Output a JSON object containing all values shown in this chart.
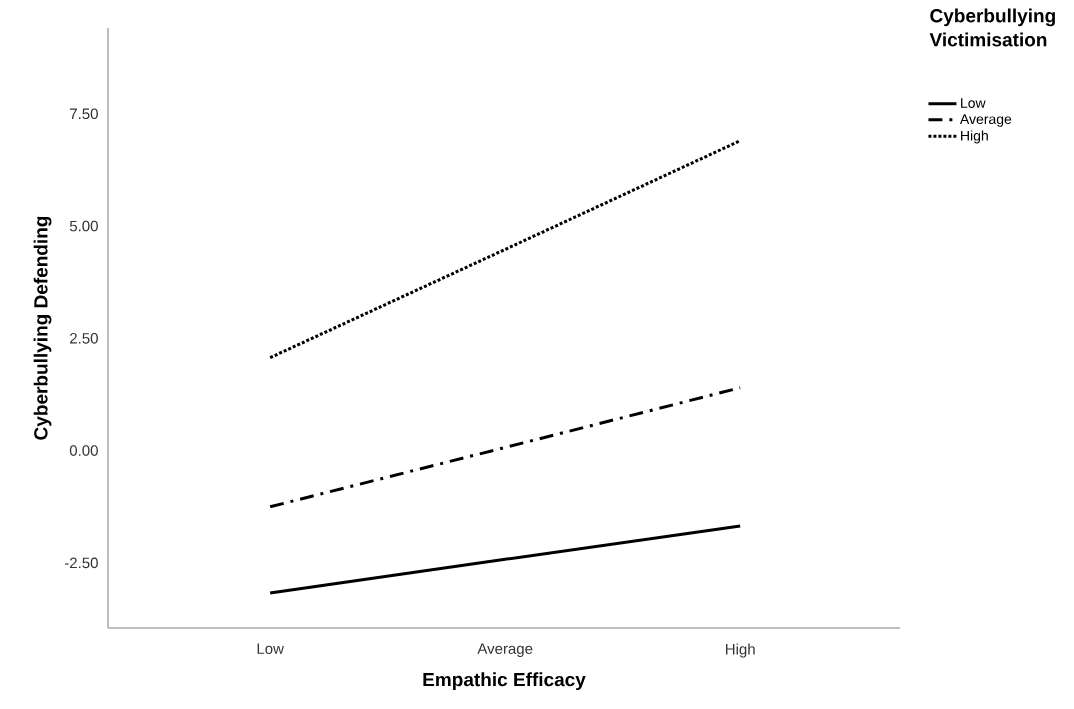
{
  "chart_data": {
    "type": "line",
    "xlabel": "Empathic Efficacy",
    "ylabel": "Cyberbullying Defending",
    "legend_title": "Cyberbullying Victimisation",
    "categories": [
      "Low",
      "Average",
      "High"
    ],
    "series": [
      {
        "name": "Low",
        "color": "#000000",
        "line_style": "solid",
        "values": [
          -3.17,
          -2.42,
          -1.68
        ]
      },
      {
        "name": "Average",
        "color": "#000000",
        "line_style": "dashdot",
        "values": [
          -1.25,
          0.07,
          1.4
        ]
      },
      {
        "name": "High",
        "color": "#000000",
        "line_style": "dotted",
        "values": [
          2.07,
          4.48,
          6.9
        ]
      }
    ],
    "ylim": [
      -3.95,
      9.41
    ],
    "yticks": [
      {
        "value": -2.5,
        "label": "-2.50"
      },
      {
        "value": 0,
        "label": "0.00"
      },
      {
        "value": 2.5,
        "label": "2.50"
      },
      {
        "value": 5,
        "label": "5.00"
      },
      {
        "value": 7.5,
        "label": "7.50"
      }
    ],
    "grid": false,
    "legend": "top right",
    "marker": "none"
  }
}
